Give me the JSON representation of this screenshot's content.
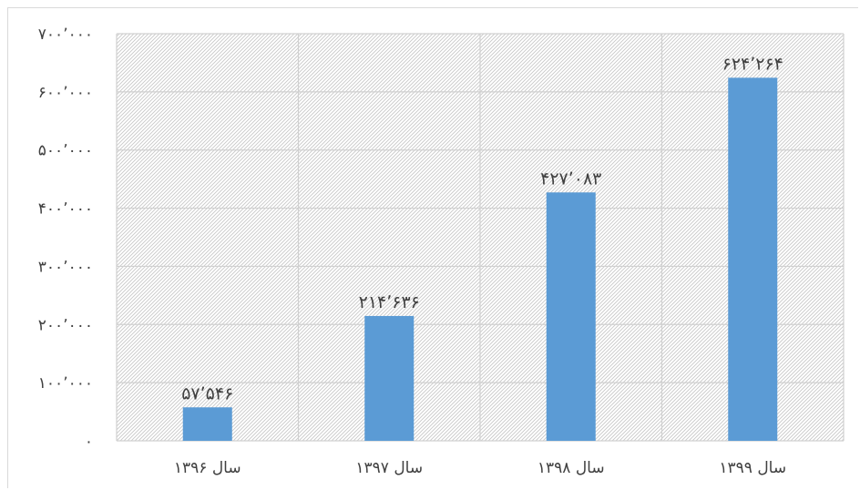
{
  "chart_data": {
    "type": "bar",
    "categories": [
      "سال ۱۳۹۶",
      "سال ۱۳۹۷",
      "سال ۱۳۹۸",
      "سال ۱۳۹۹"
    ],
    "values": [
      57546,
      214636,
      427083,
      624264
    ],
    "data_labels": [
      "۵۷٬۵۴۶",
      "۲۱۴٬۶۳۶",
      "۴۲۷٬۰۸۳",
      "۶۲۴٬۲۶۴"
    ],
    "ylim": [
      0,
      700000
    ],
    "yticks": [
      0,
      100000,
      200000,
      300000,
      400000,
      500000,
      600000,
      700000
    ],
    "ytick_labels": [
      "۰",
      "۱۰۰٬۰۰۰",
      "۲۰۰٬۰۰۰",
      "۳۰۰٬۰۰۰",
      "۴۰۰٬۰۰۰",
      "۵۰۰٬۰۰۰",
      "۶۰۰٬۰۰۰",
      "۷۰۰٬۰۰۰"
    ],
    "title": "",
    "xlabel": "",
    "ylabel": "",
    "grid": true,
    "plot_background": "hatched",
    "colors": {
      "bar": "#5b9bd5",
      "grid": "#d0d0d0",
      "hatch": "#c8c8c8",
      "text": "#404040"
    }
  }
}
